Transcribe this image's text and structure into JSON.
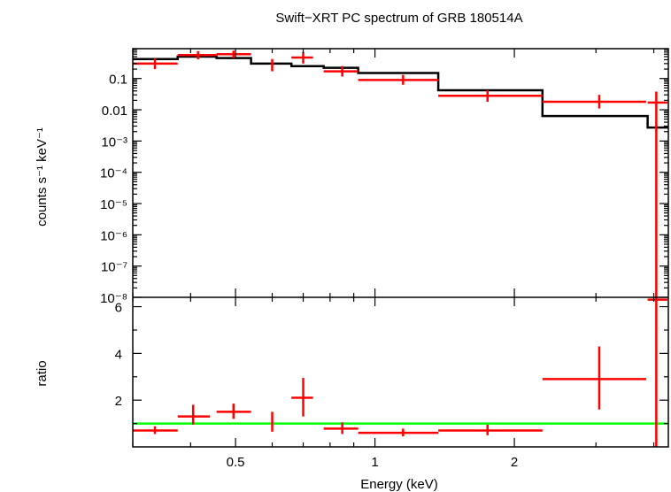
{
  "chart_data": [
    {
      "type": "line",
      "title": "Swift−XRT PC spectrum of GRB 180514A",
      "xlabel": "Energy (keV)",
      "ylabel": "counts s⁻¹ keV⁻¹",
      "xscale": "log",
      "yscale": "log",
      "xlim": [
        0.3,
        4.3
      ],
      "ylim": [
        1e-08,
        0.9
      ],
      "x_ticks": [
        {
          "value": 0.5,
          "label": "0.5"
        },
        {
          "value": 1,
          "label": "1"
        },
        {
          "value": 2,
          "label": "2"
        }
      ],
      "y_ticks": [
        {
          "value": 0.1,
          "label": "0.1"
        },
        {
          "value": 0.01,
          "label": "0.01"
        },
        {
          "value": 0.001,
          "label": "10⁻³"
        },
        {
          "value": 0.0001,
          "label": "10⁻⁴"
        },
        {
          "value": 1e-05,
          "label": "10⁻⁵"
        },
        {
          "value": 1e-06,
          "label": "10⁻⁶"
        },
        {
          "value": 1e-07,
          "label": "10⁻⁷"
        },
        {
          "value": 1e-08,
          "label": "10⁻⁸"
        }
      ],
      "series": [
        {
          "kind": "data",
          "color": "#ff0000",
          "points": [
            {
              "x": 0.335,
              "xlo": 0.3,
              "xhi": 0.375,
              "y": 0.3,
              "ylo": 0.2,
              "yhi": 0.43
            },
            {
              "x": 0.415,
              "xlo": 0.375,
              "xhi": 0.455,
              "y": 0.56,
              "ylo": 0.41,
              "yhi": 0.75
            },
            {
              "x": 0.495,
              "xlo": 0.455,
              "xhi": 0.54,
              "y": 0.6,
              "ylo": 0.45,
              "yhi": 0.78
            },
            {
              "x": 0.6,
              "xlo": 0.6,
              "xhi": 0.6,
              "y": 0.28,
              "ylo": 0.17,
              "yhi": 0.42
            },
            {
              "x": 0.7,
              "xlo": 0.66,
              "xhi": 0.735,
              "y": 0.47,
              "ylo": 0.3,
              "yhi": 0.7
            },
            {
              "x": 0.85,
              "xlo": 0.775,
              "xhi": 0.92,
              "y": 0.17,
              "ylo": 0.115,
              "yhi": 0.25
            },
            {
              "x": 1.15,
              "xlo": 0.92,
              "xhi": 1.37,
              "y": 0.09,
              "ylo": 0.063,
              "yhi": 0.13
            },
            {
              "x": 1.75,
              "xlo": 1.37,
              "xhi": 2.3,
              "y": 0.028,
              "ylo": 0.018,
              "yhi": 0.042
            },
            {
              "x": 3.05,
              "xlo": 2.3,
              "xhi": 3.85,
              "y": 0.018,
              "ylo": 0.011,
              "yhi": 0.03
            },
            {
              "x": 4.05,
              "xlo": 3.88,
              "xhi": 4.28,
              "y": 0.017,
              "ylo": 1e-08,
              "yhi": 0.038
            }
          ]
        },
        {
          "kind": "model",
          "color": "#000000",
          "steps": [
            {
              "xlo": 0.3,
              "xhi": 0.375,
              "y": 0.42
            },
            {
              "xlo": 0.375,
              "xhi": 0.455,
              "y": 0.5
            },
            {
              "xlo": 0.455,
              "xhi": 0.54,
              "y": 0.45
            },
            {
              "xlo": 0.54,
              "xhi": 0.66,
              "y": 0.3
            },
            {
              "xlo": 0.66,
              "xhi": 0.775,
              "y": 0.25
            },
            {
              "xlo": 0.775,
              "xhi": 0.92,
              "y": 0.22
            },
            {
              "xlo": 0.92,
              "xhi": 1.37,
              "y": 0.15
            },
            {
              "xlo": 1.37,
              "xhi": 2.3,
              "y": 0.042
            },
            {
              "xlo": 2.3,
              "xhi": 3.88,
              "y": 0.0063
            },
            {
              "xlo": 3.88,
              "xhi": 4.3,
              "y": 0.0027
            }
          ]
        }
      ]
    },
    {
      "type": "scatter",
      "xlabel": "Energy (keV)",
      "ylabel": "ratio",
      "xscale": "log",
      "xlim": [
        0.3,
        4.3
      ],
      "ylim": [
        0,
        6.4
      ],
      "x_ticks": [
        {
          "value": 0.5,
          "label": "0.5"
        },
        {
          "value": 1,
          "label": "1"
        },
        {
          "value": 2,
          "label": "2"
        }
      ],
      "y_ticks": [
        {
          "value": 2,
          "label": "2"
        },
        {
          "value": 4,
          "label": "4"
        },
        {
          "value": 6,
          "label": "6"
        }
      ],
      "reference_line": {
        "y": 1,
        "color": "#00ff00"
      },
      "series": [
        {
          "kind": "data",
          "color": "#ff0000",
          "points": [
            {
              "x": 0.335,
              "xlo": 0.3,
              "xhi": 0.375,
              "y": 0.7,
              "ylo": 0.55,
              "yhi": 0.88
            },
            {
              "x": 0.405,
              "xlo": 0.375,
              "xhi": 0.44,
              "y": 1.3,
              "ylo": 0.95,
              "yhi": 1.8
            },
            {
              "x": 0.495,
              "xlo": 0.455,
              "xhi": 0.54,
              "y": 1.5,
              "ylo": 1.2,
              "yhi": 1.85
            },
            {
              "x": 0.6,
              "xlo": 0.6,
              "xhi": 0.6,
              "y": 1.0,
              "ylo": 0.65,
              "yhi": 1.5
            },
            {
              "x": 0.7,
              "xlo": 0.66,
              "xhi": 0.735,
              "y": 2.1,
              "ylo": 1.3,
              "yhi": 2.95
            },
            {
              "x": 0.85,
              "xlo": 0.775,
              "xhi": 0.92,
              "y": 0.78,
              "ylo": 0.55,
              "yhi": 1.05
            },
            {
              "x": 1.15,
              "xlo": 0.92,
              "xhi": 1.37,
              "y": 0.6,
              "ylo": 0.45,
              "yhi": 0.78
            },
            {
              "x": 1.75,
              "xlo": 1.37,
              "xhi": 2.3,
              "y": 0.7,
              "ylo": 0.5,
              "yhi": 0.95
            },
            {
              "x": 3.05,
              "xlo": 2.3,
              "xhi": 3.85,
              "y": 2.9,
              "ylo": 1.6,
              "yhi": 4.3
            },
            {
              "x": 4.05,
              "xlo": 3.88,
              "xhi": 4.28,
              "y": 6.3,
              "ylo": 0,
              "yhi": 6.4
            }
          ]
        }
      ]
    }
  ]
}
